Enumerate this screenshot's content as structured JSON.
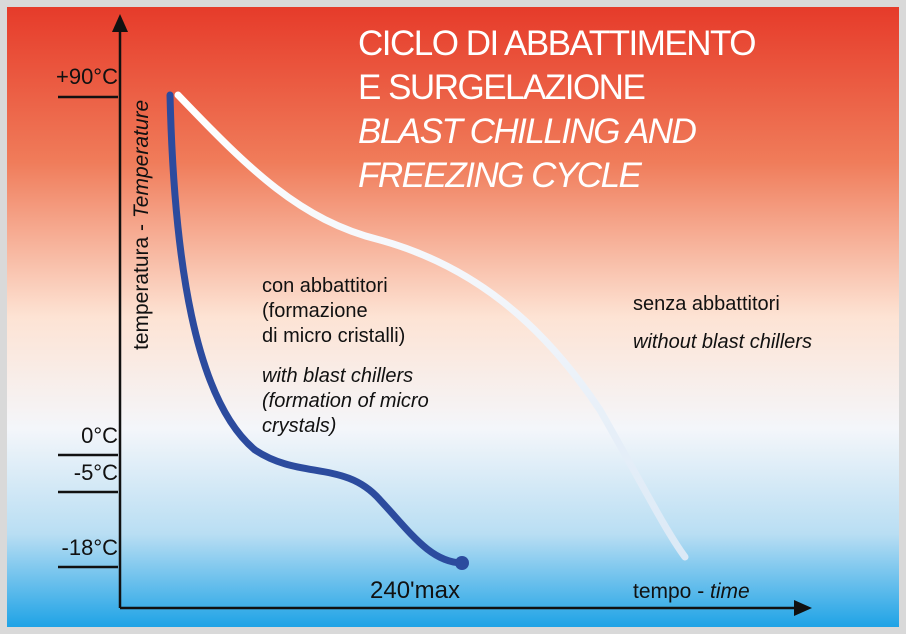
{
  "title": {
    "lines": [
      "CICLO DI ABBATTIMENTO",
      "E SURGELAZIONE"
    ],
    "lines_en": [
      "BLAST CHILLING AND",
      "FREEZING CYCLE"
    ]
  },
  "y_axis_label": {
    "it": "temperatura - ",
    "en": "Temperature"
  },
  "temperature_labels": [
    "+90°C",
    "0°C",
    "-5°C",
    "-18°C"
  ],
  "with_chillers": {
    "it": [
      "con abbattitori",
      "(formazione",
      "di micro cristalli)"
    ],
    "en": [
      "with blast chillers",
      "(formation of micro",
      "crystals)"
    ]
  },
  "without_chillers": {
    "it": "senza abbattitori",
    "en": "without blast chillers"
  },
  "end_label": "240'max",
  "x_axis_label": {
    "it": "tempo - ",
    "en": "time"
  }
}
